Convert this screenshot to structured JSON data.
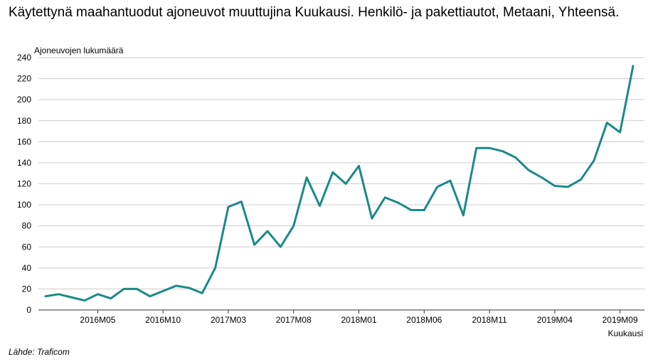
{
  "title": "Käytettynä maahantuodut ajoneuvot muuttujina Kuukausi. Henkilö- ja pakettiautot, Metaani, Yhteensä.",
  "source": "Lähde: Traficom",
  "colors": {
    "line": "#1a8a86",
    "grid": "#cccccc",
    "axis": "#333333"
  },
  "chart_data": {
    "type": "line",
    "title": "Käytettynä maahantuodut ajoneuvot muuttujina Kuukausi. Henkilö- ja pakettiautot, Metaani, Yhteensä.",
    "xlabel": "Kuukausi",
    "ylabel": "Ajoneuvojen lukumäärä",
    "ylim": [
      0,
      240
    ],
    "yticks": [
      0,
      20,
      40,
      60,
      80,
      100,
      120,
      140,
      160,
      180,
      200,
      220,
      240
    ],
    "grid": true,
    "legend": "none",
    "x": [
      "2016M01",
      "2016M02",
      "2016M03",
      "2016M04",
      "2016M05",
      "2016M06",
      "2016M07",
      "2016M08",
      "2016M09",
      "2016M10",
      "2016M11",
      "2016M12",
      "2017M01",
      "2017M02",
      "2017M03",
      "2017M04",
      "2017M05",
      "2017M06",
      "2017M07",
      "2017M08",
      "2017M09",
      "2017M10",
      "2017M11",
      "2017M12",
      "2018M01",
      "2018M02",
      "2018M03",
      "2018M04",
      "2018M05",
      "2018M06",
      "2018M07",
      "2018M08",
      "2018M09",
      "2018M10",
      "2018M11",
      "2018M12",
      "2019M01",
      "2019M02",
      "2019M03",
      "2019M04",
      "2019M05",
      "2019M06",
      "2019M07",
      "2019M08",
      "2019M09",
      "2019M10"
    ],
    "xticks": [
      "2016M05",
      "2016M10",
      "2017M03",
      "2017M08",
      "2018M01",
      "2018M06",
      "2018M11",
      "2019M04",
      "2019M09"
    ],
    "series": [
      {
        "values": [
          13,
          15,
          12,
          9,
          15,
          11,
          20,
          20,
          13,
          18,
          23,
          21,
          16,
          40,
          98,
          103,
          62,
          75,
          60,
          80,
          126,
          99,
          131,
          120,
          137,
          87,
          107,
          102,
          95,
          95,
          117,
          123,
          90,
          154,
          154,
          151,
          145,
          133,
          126,
          118,
          117,
          124,
          142,
          178,
          169,
          232
        ]
      }
    ]
  }
}
